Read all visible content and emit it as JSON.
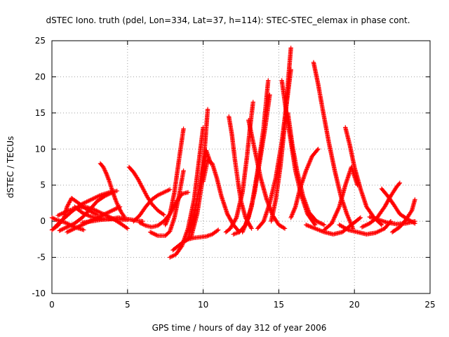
{
  "chart_data": {
    "type": "scatter",
    "title": "dSTEC Iono. truth (pdel, Lon=334, Lat=37, h=114): STEC-STEC_elemax in phase cont.",
    "xlabel": "GPS time / hours of day 312 of year 2006",
    "ylabel": "dSTEC  / TECUs",
    "xlim": [
      0,
      25
    ],
    "ylim": [
      -10,
      25
    ],
    "xticks": [
      0,
      5,
      10,
      15,
      20,
      25
    ],
    "yticks": [
      -10,
      -5,
      0,
      5,
      10,
      15,
      20,
      25
    ],
    "xtick_labels": [
      "0",
      "5",
      "10",
      "15",
      "20",
      "25"
    ],
    "ytick_labels": [
      "-10",
      "-5",
      "0",
      "5",
      "10",
      "15",
      "20",
      "25"
    ],
    "grid": true,
    "legend": "none",
    "marker": "+",
    "series_color": "#ff0000",
    "series": [
      {
        "x": [
          0.0,
          0.3,
          0.6,
          0.9,
          1.2,
          1.5,
          1.8,
          2.1
        ],
        "y": [
          0.5,
          0.2,
          0.0,
          -0.2,
          -0.5,
          -0.8,
          -1.0,
          -1.2
        ]
      },
      {
        "x": [
          0.0,
          0.4,
          0.8,
          1.0,
          1.3,
          1.7,
          2.2,
          2.7,
          3.0
        ],
        "y": [
          -1.2,
          -0.6,
          0.5,
          2.0,
          3.2,
          2.6,
          1.8,
          1.2,
          0.9
        ]
      },
      {
        "x": [
          0.2,
          0.8,
          1.4,
          2.0,
          2.6,
          3.2,
          3.8,
          4.3
        ],
        "y": [
          -0.8,
          0.4,
          1.5,
          2.4,
          3.0,
          3.6,
          4.0,
          4.2
        ]
      },
      {
        "x": [
          0.4,
          1.0,
          1.6,
          2.2,
          2.8,
          3.4,
          4.0,
          4.6,
          5.0
        ],
        "y": [
          0.8,
          1.4,
          1.8,
          2.0,
          1.6,
          1.0,
          0.4,
          -0.4,
          -1.0
        ]
      },
      {
        "x": [
          0.5,
          1.0,
          1.5,
          2.0,
          2.5,
          3.0,
          3.5,
          4.0
        ],
        "y": [
          -1.3,
          -0.8,
          -0.3,
          0.5,
          1.6,
          2.8,
          3.5,
          4.0
        ]
      },
      {
        "x": [
          1.0,
          1.5,
          2.0,
          2.5,
          3.0,
          3.5,
          4.0,
          4.5
        ],
        "y": [
          -1.5,
          -1.0,
          -0.5,
          0.0,
          0.5,
          1.0,
          1.5,
          2.0
        ]
      },
      {
        "x": [
          3.2,
          3.4,
          3.6,
          3.8,
          4.0,
          4.2,
          4.4,
          4.6,
          4.8
        ],
        "y": [
          8.0,
          7.5,
          6.6,
          5.5,
          4.2,
          3.0,
          2.0,
          1.2,
          0.6
        ]
      },
      {
        "x": [
          1.5,
          2.0,
          2.5,
          3.0,
          3.5,
          4.0,
          4.5,
          5.0
        ],
        "y": [
          2.0,
          1.2,
          0.7,
          0.4,
          0.3,
          0.3,
          0.2,
          0.2
        ]
      },
      {
        "x": [
          2.0,
          2.6,
          3.2,
          3.8,
          4.4,
          5.0,
          5.6,
          6.0
        ],
        "y": [
          -0.2,
          0.0,
          0.2,
          0.3,
          0.5,
          0.3,
          0.1,
          0.0
        ]
      },
      {
        "x": [
          5.1,
          5.4,
          5.7,
          6.0,
          6.3,
          6.6,
          7.0,
          7.4
        ],
        "y": [
          7.5,
          6.8,
          5.8,
          4.6,
          3.4,
          2.4,
          1.5,
          0.9
        ]
      },
      {
        "x": [
          5.4,
          5.8,
          6.2,
          6.6,
          7.0,
          7.4,
          7.8
        ],
        "y": [
          0.0,
          0.8,
          2.0,
          3.0,
          3.6,
          4.0,
          4.4
        ]
      },
      {
        "x": [
          5.8,
          6.2,
          6.6,
          7.0,
          7.4,
          7.8,
          8.2,
          8.6,
          9.0
        ],
        "y": [
          -0.2,
          -0.6,
          -0.8,
          -0.6,
          0.0,
          1.0,
          2.6,
          3.8,
          4.0
        ]
      },
      {
        "x": [
          6.5,
          7.0,
          7.5,
          7.8,
          8.1,
          8.4,
          8.7
        ],
        "y": [
          -1.5,
          -2.0,
          -2.0,
          -1.4,
          0.5,
          3.5,
          7.0
        ]
      },
      {
        "x": [
          7.5,
          7.8,
          8.1,
          8.4,
          8.7
        ],
        "y": [
          -0.5,
          1.0,
          4.0,
          8.5,
          12.8
        ]
      },
      {
        "x": [
          7.8,
          8.2,
          8.6,
          9.0,
          9.4,
          9.7,
          10.0
        ],
        "y": [
          -5.0,
          -4.6,
          -3.4,
          -1.0,
          3.0,
          8.0,
          13.0
        ]
      },
      {
        "x": [
          8.0,
          8.6,
          9.2,
          9.6,
          9.9,
          10.1,
          10.3
        ],
        "y": [
          -4.0,
          -3.0,
          -2.2,
          1.0,
          5.0,
          10.0,
          15.5
        ]
      },
      {
        "x": [
          8.6,
          9.0,
          9.4,
          9.8,
          10.2,
          10.6,
          11.0
        ],
        "y": [
          -3.0,
          -2.5,
          -2.3,
          -2.2,
          -2.1,
          -1.8,
          -1.2
        ]
      },
      {
        "x": [
          9.0,
          9.3,
          9.6,
          9.9,
          10.2,
          10.5
        ],
        "y": [
          -2.5,
          0.0,
          3.0,
          6.5,
          9.8,
          8.0
        ]
      },
      {
        "x": [
          10.0,
          10.3,
          10.6,
          10.9,
          11.2,
          11.6,
          12.0,
          12.4
        ],
        "y": [
          5.5,
          8.5,
          8.0,
          6.0,
          3.5,
          1.0,
          -0.5,
          -1.5
        ]
      },
      {
        "x": [
          11.7,
          11.9,
          12.1,
          12.3,
          12.5,
          12.8,
          13.2
        ],
        "y": [
          14.5,
          12.0,
          8.5,
          5.5,
          2.8,
          0.5,
          -1.0
        ]
      },
      {
        "x": [
          11.5,
          11.8,
          12.2,
          12.6,
          12.9,
          13.1,
          13.3
        ],
        "y": [
          -1.5,
          -1.0,
          0.5,
          4.0,
          9.0,
          13.0,
          16.5
        ]
      },
      {
        "x": [
          12.0,
          12.4,
          12.8,
          13.2,
          13.6,
          14.0,
          14.3
        ],
        "y": [
          -1.8,
          -1.5,
          -0.5,
          2.0,
          7.0,
          13.0,
          19.5
        ]
      },
      {
        "x": [
          12.6,
          13.0,
          13.4,
          13.8,
          14.1,
          14.4
        ],
        "y": [
          -1.5,
          0.5,
          4.0,
          9.0,
          13.0,
          17.5
        ]
      },
      {
        "x": [
          13.0,
          13.4,
          13.8,
          14.2,
          14.6,
          15.0,
          15.4
        ],
        "y": [
          14.0,
          10.0,
          6.0,
          3.0,
          0.8,
          -0.5,
          -1.0
        ]
      },
      {
        "x": [
          13.6,
          14.0,
          14.4,
          14.8,
          15.2,
          15.5,
          15.8
        ],
        "y": [
          -1.0,
          0.0,
          2.5,
          6.0,
          11.0,
          16.0,
          21.0
        ]
      },
      {
        "x": [
          14.5,
          14.8,
          15.1,
          15.4,
          15.6,
          15.8
        ],
        "y": [
          0.0,
          3.0,
          7.5,
          13.5,
          19.0,
          24.0
        ]
      },
      {
        "x": [
          15.2,
          15.5,
          15.8,
          16.1,
          16.5,
          16.9,
          17.4
        ],
        "y": [
          19.5,
          15.0,
          11.0,
          7.0,
          3.5,
          1.0,
          -0.5
        ]
      },
      {
        "x": [
          15.6,
          15.9,
          16.2,
          16.6,
          17.0,
          17.5,
          18.0
        ],
        "y": [
          15.0,
          10.5,
          7.0,
          3.5,
          1.2,
          0.0,
          -0.5
        ]
      },
      {
        "x": [
          15.8,
          16.1,
          16.4,
          16.8,
          17.2,
          17.6
        ],
        "y": [
          0.5,
          2.0,
          4.5,
          7.0,
          9.0,
          10.0
        ]
      },
      {
        "x": [
          17.3,
          17.6,
          17.9,
          18.3,
          18.7,
          19.1,
          19.5,
          19.9
        ],
        "y": [
          22.0,
          19.0,
          15.5,
          11.0,
          7.0,
          3.5,
          1.0,
          -1.0
        ]
      },
      {
        "x": [
          16.8,
          17.4,
          18.0,
          18.6,
          19.2,
          19.8,
          20.4
        ],
        "y": [
          -0.5,
          -1.0,
          -1.5,
          -1.8,
          -1.5,
          -0.5,
          0.5
        ]
      },
      {
        "x": [
          18.0,
          18.5,
          19.0,
          19.4,
          19.8,
          20.2
        ],
        "y": [
          -1.2,
          -0.3,
          2.0,
          5.0,
          7.5,
          5.0
        ]
      },
      {
        "x": [
          19.4,
          19.7,
          20.0,
          20.4,
          20.8,
          21.3,
          21.8
        ],
        "y": [
          13.0,
          10.5,
          7.5,
          4.5,
          2.0,
          0.5,
          -0.5
        ]
      },
      {
        "x": [
          19.0,
          19.6,
          20.2,
          20.8,
          21.4,
          22.0,
          22.4
        ],
        "y": [
          -0.5,
          -1.2,
          -1.5,
          -1.8,
          -1.6,
          -1.0,
          0.0
        ]
      },
      {
        "x": [
          20.5,
          21.0,
          21.5,
          22.0,
          22.4,
          22.8,
          23.0
        ],
        "y": [
          -0.8,
          -0.3,
          0.5,
          2.0,
          3.5,
          4.8,
          5.3
        ]
      },
      {
        "x": [
          21.8,
          22.2,
          22.6,
          23.0,
          23.5,
          24.0
        ],
        "y": [
          4.5,
          3.5,
          2.3,
          1.0,
          0.3,
          -0.3
        ]
      },
      {
        "x": [
          22.5,
          23.0,
          23.4,
          23.8,
          24.0
        ],
        "y": [
          -1.5,
          -0.8,
          0.2,
          1.5,
          3.0
        ]
      },
      {
        "x": [
          21.0,
          21.6,
          22.2,
          22.8,
          23.4,
          24.0
        ],
        "y": [
          0.6,
          0.2,
          -0.2,
          -0.4,
          -0.3,
          0.0
        ]
      }
    ]
  }
}
